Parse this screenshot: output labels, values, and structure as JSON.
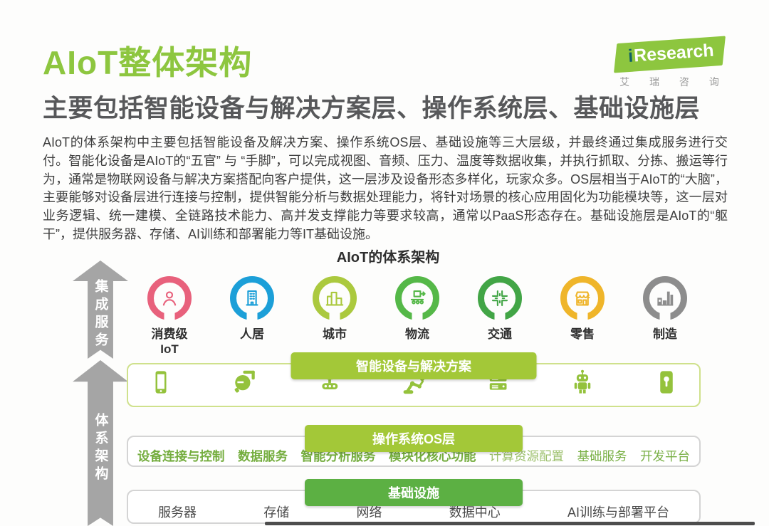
{
  "header": {
    "title": "AIoT整体架构",
    "subtitle": "主要包括智能设备与解决方案层、操作系统层、基础设施层",
    "logo": {
      "i": "i",
      "brand": "Research",
      "tagline": "艾 瑞 咨 询"
    }
  },
  "intro": "AIoT的体系架构中主要包括智能设备及解决方案、操作系统OS层、基础设施等三大层级，并最终通过集成服务进行交付。智能化设备是AIoT的“五官” 与 “手脚”，可以完成视图、音频、压力、温度等数据收集，并执行抓取、分拣、搬运等行为，通常是物联网设备与解决方案搭配向客户提供，这一层涉及设备形态多样化，玩家众多。OS层相当于AIoT的“大脑”，主要能够对设备层进行连接与控制，提供智能分析与数据处理能力，将针对场景的核心应用固化为功能模块等，这一层对业务逻辑、统一建模、全链路技术能力、高并发支撑能力等要求较高，通常以PaaS形态存在。基础设施层是AIoT的“躯干”，提供服务器、存储、AI训练和部署能力等IT基础设施。",
  "diagram": {
    "title": "AIoT的体系架构",
    "arrows": [
      {
        "label": "集成服务"
      },
      {
        "label": "体系架构"
      }
    ],
    "scenes": [
      {
        "id": "consumer-iot",
        "lines": [
          "消费级",
          "IoT"
        ],
        "icon": "person-icon",
        "color": "#e8617c"
      },
      {
        "id": "habitat",
        "lines": [
          "人居"
        ],
        "icon": "building-icon",
        "color": "#1c9fd8"
      },
      {
        "id": "city",
        "lines": [
          "城市"
        ],
        "icon": "city-icon",
        "color": "#abc93e"
      },
      {
        "id": "logistics",
        "lines": [
          "物流"
        ],
        "icon": "conveyor-icon",
        "color": "#55b848"
      },
      {
        "id": "traffic",
        "lines": [
          "交通"
        ],
        "icon": "crossroad-icon",
        "color": "#42a546"
      },
      {
        "id": "retail",
        "lines": [
          "零售"
        ],
        "icon": "storefront-icon",
        "color": "#efb52a"
      },
      {
        "id": "manufacturing",
        "lines": [
          "制造"
        ],
        "icon": "factory-icon",
        "color": "#8d8d8d"
      }
    ],
    "layers": [
      {
        "banner": "智能设备与解决方案",
        "icons": [
          {
            "id": "smartphone",
            "icon": "smartphone-icon"
          },
          {
            "id": "camera",
            "icon": "security-camera-icon"
          },
          {
            "id": "robot-vehicle",
            "icon": "robot-vehicle-icon"
          },
          {
            "id": "robotic-arm",
            "icon": "robotic-arm-icon"
          },
          {
            "id": "server-rack",
            "icon": "server-rack-icon"
          },
          {
            "id": "robot",
            "icon": "robot-icon"
          },
          {
            "id": "smart-lock",
            "icon": "smart-lock-icon"
          }
        ]
      },
      {
        "banner": "操作系统OS层",
        "items": [
          "设备连接与控制",
          "数据服务",
          "智能分析服务",
          "模块化核心功能",
          "计算资源配置",
          "基础服务",
          "开发平台"
        ]
      },
      {
        "banner": "基础设施",
        "items": [
          "服务器",
          "存储",
          "网络",
          "数据中心",
          "AI训练与部署平台"
        ]
      }
    ]
  },
  "colors": {
    "accent_green": "#8dc63f",
    "banner_green": "#a3c838",
    "infra_banner_green": "#5cb043",
    "arrow_gray": "#a5a5a5"
  }
}
